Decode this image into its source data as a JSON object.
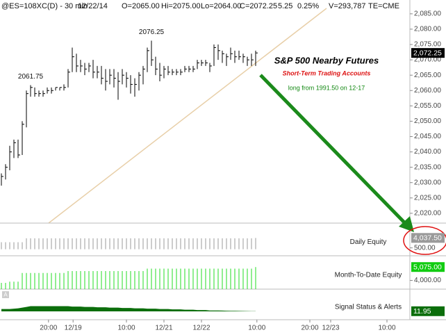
{
  "chart_data": [
    {
      "type": "hlc",
      "header": [
        "@ES=108XC(D) - 30 min",
        "12/22/14",
        "O=2065.00",
        "Hi=2075.00",
        "Lo=2064.00",
        "C=2072.25",
        "5.25",
        "0.25%",
        "V=293,787",
        "TE=CME"
      ],
      "title": "S&P 500 Nearby Futures",
      "subtitle": "Short-Term Trading Accounts",
      "note": "long from 1991.50 on 12-17",
      "annotations": [
        {
          "value": 2061.75,
          "label": "2061.75"
        },
        {
          "value": 2076.25,
          "label": "2076.25"
        }
      ],
      "high": [
        2033,
        2036,
        2042,
        2044,
        2044,
        2050,
        2060,
        2061.75,
        2061,
        2060,
        2060,
        2061,
        2061,
        2061,
        2061,
        2062,
        2067,
        2074,
        2072,
        2070,
        2069,
        2069,
        2070,
        2068,
        2068,
        2067,
        2067,
        2067,
        2066,
        2067,
        2066,
        2065,
        2064,
        2066,
        2068,
        2074,
        2076.25,
        2071,
        2069,
        2068,
        2068,
        2067,
        2067,
        2067,
        2068,
        2068,
        2068,
        2070,
        2070,
        2070,
        2069,
        2075,
        2075,
        2073,
        2072,
        2074,
        2073,
        2073,
        2072,
        2071,
        2072,
        2073
      ],
      "low": [
        2029,
        2031,
        2034,
        2038,
        2038,
        2039,
        2048,
        2058,
        2058,
        2058,
        2058,
        2059,
        2059,
        2060,
        2060,
        2060,
        2061,
        2066,
        2066,
        2066,
        2065,
        2066,
        2064,
        2064,
        2062,
        2060,
        2062,
        2061,
        2057,
        2062,
        2061,
        2059,
        2058,
        2060,
        2062,
        2066,
        2068,
        2065,
        2063,
        2064,
        2065,
        2065,
        2065,
        2065,
        2066,
        2066,
        2066,
        2067,
        2068,
        2068,
        2066,
        2068,
        2070,
        2069,
        2068,
        2070,
        2069,
        2070,
        2069,
        2068,
        2068,
        2068
      ],
      "close": [
        2032,
        2035,
        2040,
        2043,
        2039,
        2049,
        2059,
        2061,
        2059,
        2059,
        2059,
        2060,
        2060,
        2061,
        2061,
        2061,
        2066,
        2071,
        2068,
        2068,
        2067,
        2068,
        2066,
        2066,
        2064,
        2063,
        2065,
        2064,
        2063,
        2065,
        2064,
        2062,
        2062,
        2065,
        2067,
        2073,
        2070,
        2067,
        2065,
        2067,
        2066,
        2066,
        2066,
        2066,
        2067,
        2067,
        2067,
        2069,
        2069,
        2069,
        2068,
        2074,
        2073,
        2072,
        2071,
        2072,
        2071,
        2071,
        2071,
        2070,
        2070,
        2072.25
      ],
      "color": "#000000",
      "last": {
        "value": 2072.25,
        "label": "2,072.25"
      },
      "xlim": [
        0,
        98
      ],
      "xticks": [
        {
          "value": 11.3,
          "label": "20:00"
        },
        {
          "value": 17.2,
          "label": "12/19"
        },
        {
          "value": 30,
          "label": "10:00"
        },
        {
          "value": 39,
          "label": "12/21"
        },
        {
          "value": 48,
          "label": "12/22"
        },
        {
          "value": 61.3,
          "label": "10:00"
        },
        {
          "value": 74,
          "label": "20:00"
        },
        {
          "value": 79,
          "label": "12/23"
        },
        {
          "value": 92.5,
          "label": "10:00"
        }
      ],
      "ylim": [
        2016.8,
        2089.5
      ],
      "yticks": [
        {
          "value": 2020,
          "label": "2,020.00"
        },
        {
          "value": 2025,
          "label": "2,025.00"
        },
        {
          "value": 2030,
          "label": "2,030.00"
        },
        {
          "value": 2035,
          "label": "2,035.00"
        },
        {
          "value": 2040,
          "label": "2,040.00"
        },
        {
          "value": 2045,
          "label": "2,045.00"
        },
        {
          "value": 2050,
          "label": "2,050.00"
        },
        {
          "value": 2055,
          "label": "2,055.00"
        },
        {
          "value": 2060,
          "label": "2,060.00"
        },
        {
          "value": 2065,
          "label": "2,065.00"
        },
        {
          "value": 2070,
          "label": "2,070.00"
        },
        {
          "value": 2075,
          "label": "2,075.00"
        },
        {
          "value": 2080,
          "label": "2,080.00"
        },
        {
          "value": 2085,
          "label": "2,085.00"
        }
      ],
      "grid": false
    },
    {
      "type": "bar",
      "title": "Daily Equity",
      "color": "#9a9a9a",
      "last_color": "#9a9a9a",
      "values": [
        2500,
        2500,
        2500,
        2500,
        2500,
        2500,
        3900,
        3900,
        3900,
        3900,
        3900,
        3900,
        3900,
        3900,
        3900,
        3900,
        3900,
        3900,
        3900,
        3900,
        3900,
        3900,
        3900,
        3900,
        3900,
        3900,
        3900,
        3900,
        3900,
        3900,
        3900,
        3900,
        3900,
        3900,
        3900,
        3900,
        3900,
        3900,
        3900,
        3900,
        3900,
        3900,
        3900,
        3900,
        3900,
        3900,
        3900,
        3900,
        3900,
        3900,
        3900,
        3900,
        3900,
        3900,
        3900,
        3900,
        3900,
        3900,
        3900,
        3900,
        3900,
        4037.5
      ],
      "ylim": [
        -2300,
        9300
      ],
      "yticks": [
        {
          "value": 500,
          "label": "500.00"
        }
      ],
      "last": {
        "value": 4037.5,
        "label": "4,037.50"
      }
    },
    {
      "type": "bar",
      "title": "Month-To-Date Equity",
      "color": "#22dd22",
      "last_color": "#11cc11",
      "values": [
        3800,
        3800,
        3900,
        3900,
        3900,
        4600,
        4600,
        4600,
        4600,
        4600,
        4600,
        4600,
        4600,
        4600,
        4600,
        4600,
        4750,
        4750,
        4750,
        4750,
        4750,
        4750,
        4750,
        4750,
        4750,
        4750,
        4750,
        4750,
        4750,
        4750,
        4750,
        4750,
        4750,
        4750,
        4750,
        4950,
        4950,
        4950,
        4950,
        4950,
        4950,
        4950,
        4950,
        4950,
        4950,
        4950,
        4950,
        4950,
        4950,
        4950,
        4950,
        4950,
        4950,
        4950,
        4950,
        4950,
        4950,
        4950,
        4950,
        4950,
        4950,
        5075
      ],
      "ylim": [
        3300,
        5980
      ],
      "yticks": [
        {
          "value": 4000,
          "label": "4,000.00"
        }
      ],
      "last": {
        "value": 5075,
        "label": "5,075.00"
      }
    },
    {
      "type": "area",
      "title": "Signal Status & Alerts",
      "color": "#0b6e0b",
      "last_color": "#0b6e0b",
      "values": [
        15,
        15,
        15,
        15.5,
        16,
        17,
        18,
        19,
        19,
        19,
        19,
        19,
        19,
        19,
        19,
        19,
        19,
        18.5,
        18.5,
        18.5,
        18,
        18,
        18,
        17.5,
        17.5,
        17.5,
        17,
        17,
        17,
        16.5,
        16.5,
        16.5,
        16,
        16,
        16,
        15.5,
        15.5,
        15.5,
        15,
        15,
        15,
        14.5,
        14.5,
        14.5,
        14,
        14,
        14,
        13.5,
        13.5,
        13.5,
        13,
        13,
        13,
        12.8,
        12.6,
        12.5,
        12.4,
        12.3,
        12.2,
        12.1,
        12,
        11.95
      ],
      "ylim": [
        0,
        43
      ],
      "last": {
        "value": 11.95,
        "label": "11.95"
      }
    }
  ]
}
